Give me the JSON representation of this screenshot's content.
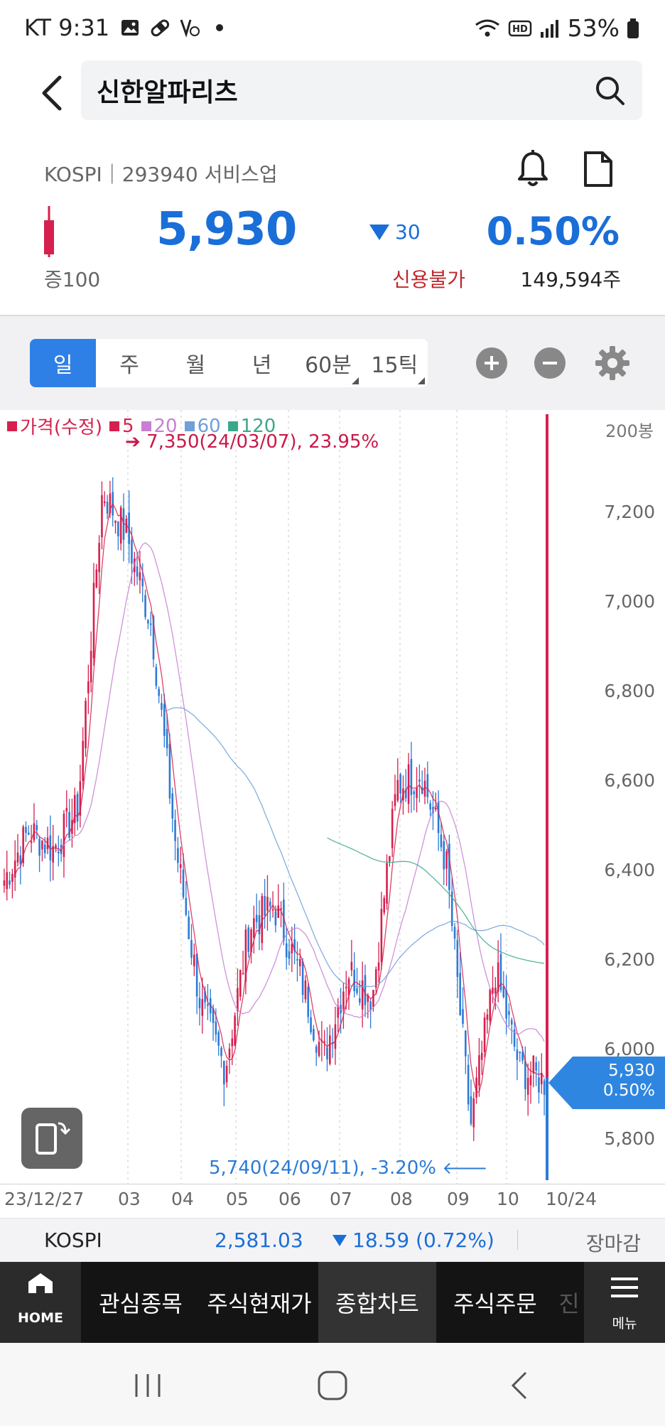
{
  "status_bar": {
    "carrier_time": "KT 9:31",
    "battery": "53%"
  },
  "header": {
    "title": "신한알파리츠"
  },
  "stock": {
    "market_line": "KOSPI｜293940 서비스업",
    "price": "5,930",
    "change": "30",
    "change_pct": "0.50%",
    "margin": "증100",
    "credit": "신용불가",
    "volume": "149,594주",
    "accent": "#1a6ed8"
  },
  "periods": [
    "일",
    "주",
    "월",
    "년",
    "60분",
    "15틱"
  ],
  "active_period": "일",
  "chart_data": {
    "type": "candlestick",
    "legend": [
      {
        "label": "가격(수정)",
        "color": "#d6204e"
      },
      {
        "label": "5",
        "color": "#d6204e"
      },
      {
        "label": "20",
        "color": "#c77fd3"
      },
      {
        "label": "60",
        "color": "#6fa0d8"
      },
      {
        "label": "120",
        "color": "#3aa88a"
      }
    ],
    "bar_count": "200봉",
    "y_ticks": [
      "7,200",
      "7,000",
      "6,800",
      "6,600",
      "6,400",
      "6,200",
      "6,000",
      "5,800"
    ],
    "y_tick_values": [
      7200,
      7000,
      6800,
      6600,
      6400,
      6200,
      6000,
      5800
    ],
    "ylim": [
      5700,
      7450
    ],
    "x_ticks": [
      "23/12/27",
      "03",
      "04",
      "05",
      "06",
      "07",
      "08",
      "09",
      "10",
      "10/24"
    ],
    "max_note": "7,350(24/03/07), 23.95%",
    "min_note": "5,740(24/09/11), -3.20%",
    "current_price": "5,930",
    "current_pct": "0.50%",
    "close_approx": [
      6380,
      6490,
      6450,
      6540,
      7250,
      7150,
      6950,
      6450,
      6100,
      5960,
      6280,
      6320,
      6180,
      5980,
      6180,
      6120,
      6590,
      6620,
      6420,
      5830,
      6180,
      5960,
      5930
    ]
  },
  "index_bar": {
    "name": "KOSPI",
    "value": "2,581.03",
    "change": "18.59 (0.72%)",
    "status": "장마감"
  },
  "bottom_nav": {
    "home": "HOME",
    "items": [
      "관심종목",
      "주식현재가",
      "종합차트",
      "주식주문",
      "진"
    ],
    "active": "종합차트",
    "menu": "메뉴"
  }
}
